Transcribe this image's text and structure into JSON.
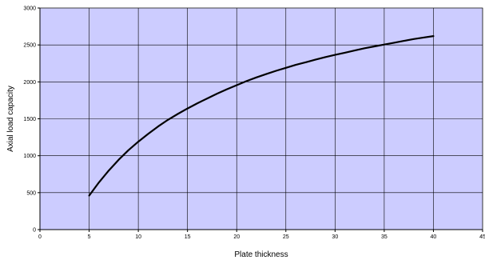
{
  "chart_data": {
    "type": "line",
    "xlabel": "Plate thickness",
    "ylabel": "Axial load capacity",
    "xlim": [
      0,
      45
    ],
    "ylim": [
      0,
      3000
    ],
    "xticks": [
      "0",
      "5",
      "10",
      "15",
      "20",
      "25",
      "30",
      "35",
      "40",
      "45"
    ],
    "yticks": [
      "0",
      "500",
      "1000",
      "1500",
      "2000",
      "2500",
      "3000"
    ],
    "grid": true,
    "legend": "none",
    "colors": {
      "plot_background": "#ccccff",
      "gridline": "#000000",
      "series": "#000000"
    },
    "series": [
      {
        "x": [
          5,
          6,
          7,
          8,
          9,
          10,
          11,
          12,
          13,
          14,
          15,
          16,
          17,
          18,
          19,
          20,
          21,
          22,
          23,
          24,
          25,
          26,
          27,
          28,
          29,
          30,
          31,
          32,
          33,
          34,
          35,
          36,
          37,
          38,
          39,
          40
        ],
        "values": [
          460,
          640,
          800,
          945,
          1075,
          1190,
          1295,
          1395,
          1485,
          1565,
          1640,
          1710,
          1775,
          1840,
          1900,
          1955,
          2010,
          2060,
          2105,
          2150,
          2190,
          2230,
          2265,
          2300,
          2335,
          2365,
          2395,
          2425,
          2455,
          2480,
          2505,
          2530,
          2555,
          2580,
          2600,
          2620
        ]
      }
    ]
  }
}
